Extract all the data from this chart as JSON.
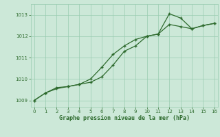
{
  "x": [
    0,
    1,
    2,
    3,
    4,
    5,
    6,
    7,
    8,
    9,
    10,
    11,
    12,
    13,
    14,
    15,
    16
  ],
  "line1": [
    1009.0,
    1009.35,
    1009.6,
    1009.65,
    1009.75,
    1009.85,
    1010.1,
    1010.65,
    1011.3,
    1011.55,
    1012.0,
    1012.1,
    1012.55,
    1012.45,
    1012.35,
    1012.5,
    1012.6
  ],
  "line2": [
    1009.0,
    1009.35,
    1009.55,
    1009.65,
    1009.75,
    1010.0,
    1010.55,
    1011.15,
    1011.55,
    1011.85,
    1012.0,
    1012.1,
    1013.05,
    1012.85,
    1012.35,
    1012.5,
    1012.6
  ],
  "line_color": "#2d6a2d",
  "bg_color": "#cce8d8",
  "grid_color": "#99ccb0",
  "xlabel": "Graphe pression niveau de la mer (hPa)",
  "ylim_min": 1008.7,
  "ylim_max": 1013.5,
  "xlim_min": -0.3,
  "xlim_max": 16.3,
  "yticks": [
    1009,
    1010,
    1011,
    1012,
    1013
  ],
  "xticks": [
    0,
    1,
    2,
    3,
    4,
    5,
    6,
    7,
    8,
    9,
    10,
    11,
    12,
    13,
    14,
    15,
    16
  ]
}
